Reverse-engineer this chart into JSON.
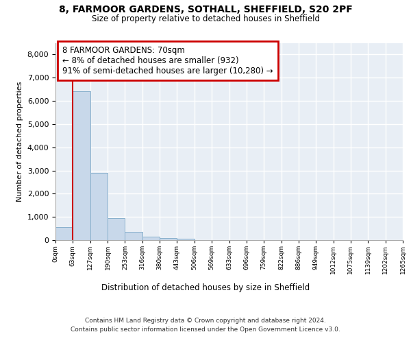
{
  "title_line1": "8, FARMOOR GARDENS, SOTHALL, SHEFFIELD, S20 2PF",
  "title_line2": "Size of property relative to detached houses in Sheffield",
  "xlabel": "Distribution of detached houses by size in Sheffield",
  "ylabel": "Number of detached properties",
  "bin_labels": [
    "0sqm",
    "63sqm",
    "127sqm",
    "190sqm",
    "253sqm",
    "316sqm",
    "380sqm",
    "443sqm",
    "506sqm",
    "569sqm",
    "633sqm",
    "696sqm",
    "759sqm",
    "822sqm",
    "886sqm",
    "949sqm",
    "1012sqm",
    "1075sqm",
    "1139sqm",
    "1202sqm",
    "1265sqm"
  ],
  "bar_values": [
    570,
    6420,
    2910,
    960,
    350,
    160,
    90,
    60,
    0,
    0,
    0,
    0,
    0,
    0,
    0,
    0,
    0,
    0,
    0,
    0
  ],
  "bar_color": "#c8d8ea",
  "bar_edge_color": "#88b0cc",
  "property_line_x": 1.0,
  "property_line_color": "#cc0000",
  "annotation_text": "8 FARMOOR GARDENS: 70sqm\n← 8% of detached houses are smaller (932)\n91% of semi-detached houses are larger (10,280) →",
  "annotation_box_edgecolor": "#cc0000",
  "ylim_max": 8500,
  "yticks": [
    0,
    1000,
    2000,
    3000,
    4000,
    5000,
    6000,
    7000,
    8000
  ],
  "footer_line1": "Contains HM Land Registry data © Crown copyright and database right 2024.",
  "footer_line2": "Contains public sector information licensed under the Open Government Licence v3.0.",
  "background_color": "#ffffff",
  "plot_bg_color": "#e8eef5",
  "grid_color": "#ffffff"
}
